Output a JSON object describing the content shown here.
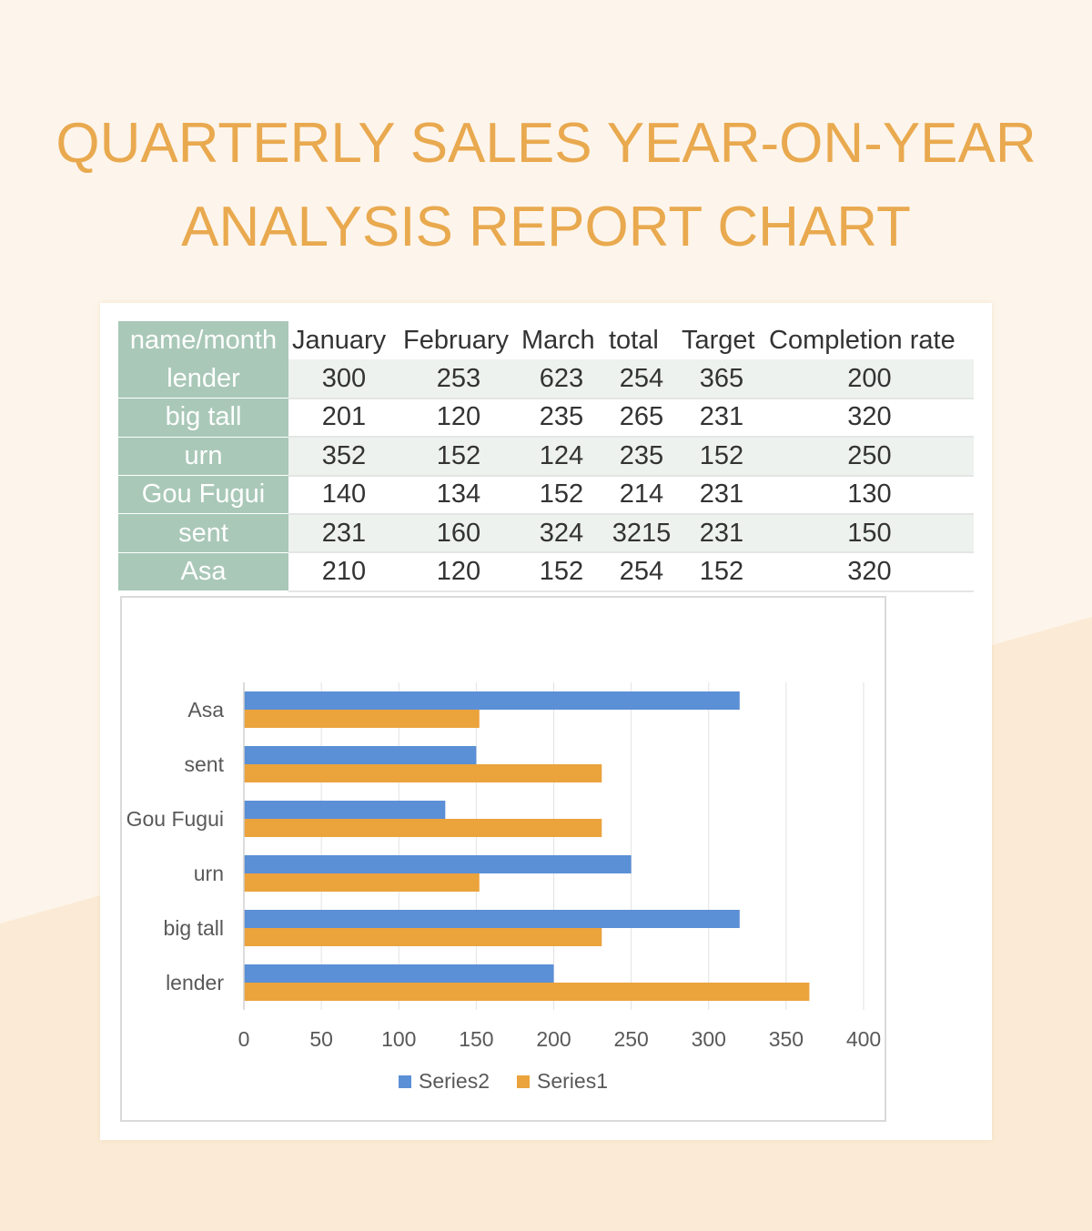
{
  "title_lines": [
    "QUARTERLY SALES YEAR-ON-YEAR",
    "ANALYSIS REPORT CHART"
  ],
  "table": {
    "columns": [
      "name/month",
      "January",
      "February",
      "March",
      "total",
      "Target",
      "Completion rate"
    ],
    "rows": [
      {
        "name": "lender",
        "values": [
          "300",
          "253",
          "623",
          "254",
          "365",
          "200"
        ]
      },
      {
        "name": "big tall",
        "values": [
          "201",
          "120",
          "235",
          "265",
          "231",
          "320"
        ]
      },
      {
        "name": "urn",
        "values": [
          "352",
          "152",
          "124",
          "235",
          "152",
          "250"
        ]
      },
      {
        "name": "Gou Fugui",
        "values": [
          "140",
          "134",
          "152",
          "214",
          "231",
          "130"
        ]
      },
      {
        "name": "sent",
        "values": [
          "231",
          "160",
          "324",
          "3215",
          "231",
          "150"
        ]
      },
      {
        "name": "Asa",
        "values": [
          "210",
          "120",
          "152",
          "254",
          "152",
          "320"
        ]
      }
    ]
  },
  "colors": {
    "title": "#e9a94f",
    "header_fill": "#a9c8b8",
    "series2": "#5b8fd6",
    "series1": "#eba33c"
  },
  "chart_data": {
    "type": "bar",
    "orientation": "horizontal",
    "categories": [
      "lender",
      "big tall",
      "urn",
      "Gou Fugui",
      "sent",
      "Asa"
    ],
    "series": [
      {
        "name": "Series2",
        "color": "#5b8fd6",
        "values": [
          200,
          320,
          250,
          130,
          150,
          320
        ]
      },
      {
        "name": "Series1",
        "color": "#eba33c",
        "values": [
          365,
          231,
          152,
          231,
          231,
          152
        ]
      }
    ],
    "xlim": [
      0,
      400
    ],
    "xticks": [
      0,
      50,
      100,
      150,
      200,
      250,
      300,
      350,
      400
    ],
    "grid": true,
    "legend": "bottom"
  }
}
